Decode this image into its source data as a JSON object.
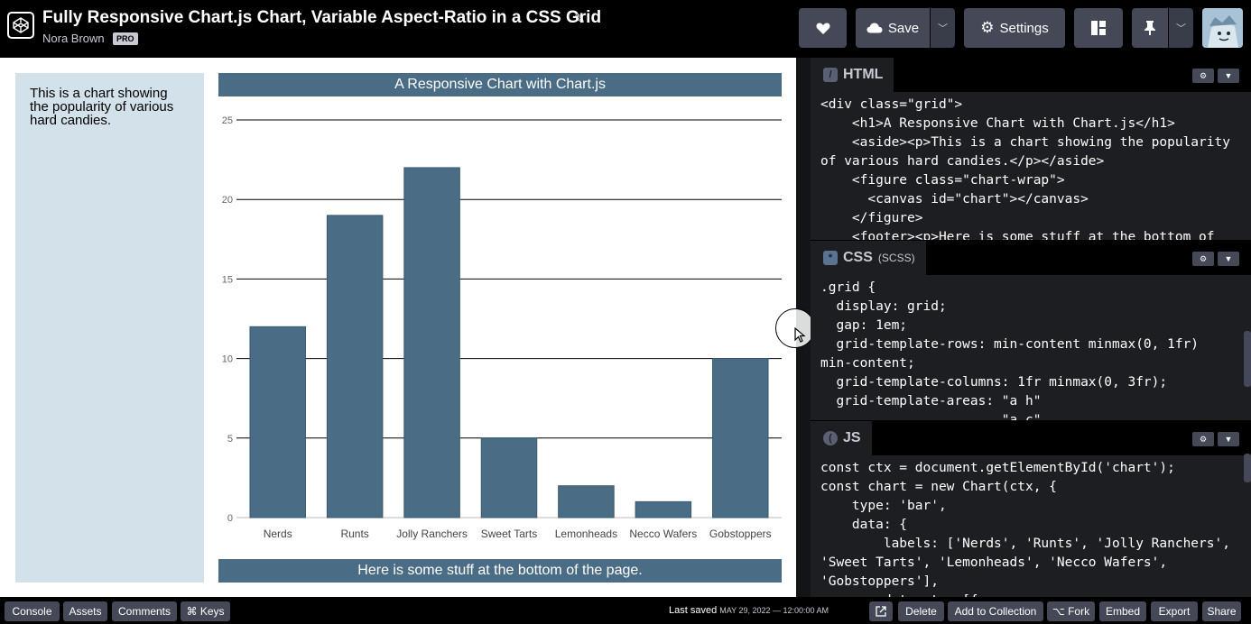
{
  "header": {
    "title": "Fully Responsive Chart.js Chart, Variable Aspect-Ratio in a CSS Grid",
    "author": "Nora Brown",
    "pro_badge": "PRO",
    "save_label": "Save",
    "settings_label": "Settings"
  },
  "preview": {
    "aside_text": "This is a chart showing the popularity of various hard candies.",
    "chart_title": "A Responsive Chart with Chart.js",
    "footer_text": "Here is some stuff at the bottom of the page."
  },
  "chart_data": {
    "type": "bar",
    "categories": [
      "Nerds",
      "Runts",
      "Jolly Ranchers",
      "Sweet Tarts",
      "Lemonheads",
      "Necco Wafers",
      "Gobstoppers"
    ],
    "values": [
      12,
      19,
      22,
      5,
      2,
      1,
      10
    ],
    "title": "A Responsive Chart with Chart.js",
    "ylim": [
      0,
      25
    ],
    "yticks": [
      0,
      5,
      10,
      15,
      20,
      25
    ],
    "grid": true,
    "bar_color": "#4a6d85"
  },
  "editors": {
    "html": {
      "label": "HTML",
      "lines": [
        "<div class=\"grid\">",
        "    <h1>A Responsive Chart with Chart.js</h1>",
        "    <aside><p>This is a chart showing the popularity",
        "of various hard candies.</p></aside>",
        "    <figure class=\"chart-wrap\">",
        "      <canvas id=\"chart\"></canvas>",
        "    </figure>",
        "    <footer><p>Here is some stuff at the bottom of"
      ]
    },
    "css": {
      "label": "CSS",
      "sub": "(SCSS)",
      "lines": [
        ".grid {",
        "  display: grid;",
        "  gap: 1em;",
        "  grid-template-rows: min-content minmax(0, 1fr)",
        "min-content;",
        "  grid-template-columns: 1fr minmax(0, 3fr);",
        "  grid-template-areas: \"a h\"",
        "                       \"a c\""
      ]
    },
    "js": {
      "label": "JS",
      "lines": [
        "const ctx = document.getElementById('chart');",
        "const chart = new Chart(ctx, {",
        "    type: 'bar',",
        "    data: {",
        "        labels: ['Nerds', 'Runts', 'Jolly Ranchers',",
        "'Sweet Tarts', 'Lemonheads', 'Necco Wafers',",
        "'Gobstoppers'],",
        "        datasets: [{"
      ]
    }
  },
  "bottombar": {
    "console": "Console",
    "assets": "Assets",
    "comments": "Comments",
    "keys": "⌘ Keys",
    "last_saved": "Last saved",
    "saved_date": "MAY 29, 2022 — 12:00:00 AM",
    "delete": "Delete",
    "add_collection": "Add to Collection",
    "fork": "⌥ Fork",
    "embed": "Embed",
    "export": "Export",
    "share": "Share"
  },
  "colors": {
    "chart_accent": "#4a6d85",
    "aside_bg": "#d3e1ea",
    "editor_bg": "#1d1e22",
    "button_bg": "#444857"
  }
}
